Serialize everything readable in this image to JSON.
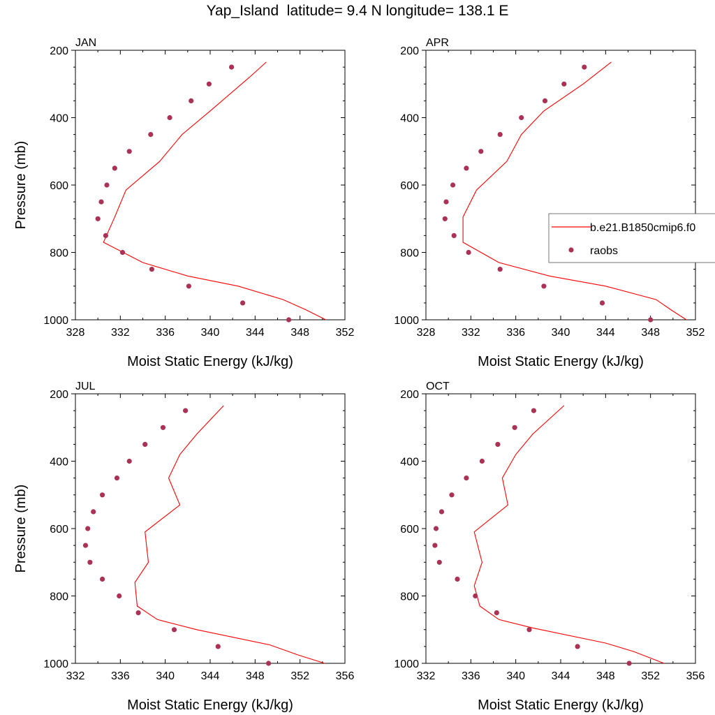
{
  "figure": {
    "title": "Yap_Island  latitude= 9.4 N longitude= 138.1 E",
    "xlabel": "Moist Static Energy (kJ/kg)",
    "ylabel": "Pressure (mb)",
    "model_color": "#ff0000",
    "obs_color": "#aa3355"
  },
  "legend": {
    "model_label": "b.e21.B1850cmip6.f0",
    "obs_label": "raobs",
    "placement": "right of APR panel"
  },
  "chart_data": [
    {
      "type": "line",
      "title": "JAN",
      "xlabel": "Moist Static Energy (kJ/kg)",
      "ylabel": "Pressure (mb)",
      "xlim": [
        328,
        352
      ],
      "ylim": [
        200,
        1000
      ],
      "y_inverted": true,
      "xticks": [
        328,
        332,
        336,
        340,
        344,
        348,
        352
      ],
      "yticks": [
        200,
        400,
        600,
        800,
        1000
      ],
      "series": [
        {
          "name": "b.e21.B1850cmip6.f0",
          "style": "line",
          "x": [
            345.0,
            343.5,
            340.0,
            337.5,
            335.5,
            332.5,
            331.5,
            330.5,
            334.0,
            338.0,
            342.5,
            346.5,
            348.5,
            350.3
          ],
          "y": [
            235,
            280,
            380,
            450,
            530,
            615,
            695,
            770,
            830,
            870,
            900,
            940,
            970,
            1000
          ]
        },
        {
          "name": "raobs",
          "style": "markers",
          "x": [
            341.9,
            339.9,
            338.3,
            336.4,
            334.7,
            332.8,
            331.5,
            330.8,
            330.3,
            330.0,
            330.7,
            332.2,
            334.8,
            338.1,
            342.9,
            347.0
          ],
          "y": [
            250,
            300,
            350,
            400,
            450,
            500,
            550,
            600,
            650,
            700,
            750,
            800,
            850,
            900,
            950,
            1000
          ]
        }
      ]
    },
    {
      "type": "line",
      "title": "APR",
      "xlabel": "Moist Static Energy (kJ/kg)",
      "ylabel": "",
      "xlim": [
        328,
        352
      ],
      "ylim": [
        200,
        1000
      ],
      "y_inverted": true,
      "xticks": [
        328,
        332,
        336,
        340,
        344,
        348,
        352
      ],
      "yticks": [
        200,
        400,
        600,
        800,
        1000
      ],
      "series": [
        {
          "name": "b.e21.B1850cmip6.f0",
          "style": "line",
          "x": [
            344.5,
            342.0,
            338.5,
            336.5,
            335.2,
            332.5,
            331.3,
            331.3,
            334.5,
            339.0,
            344.0,
            348.5,
            349.8,
            351.2
          ],
          "y": [
            235,
            300,
            380,
            450,
            530,
            615,
            695,
            770,
            830,
            870,
            900,
            940,
            970,
            1000
          ]
        },
        {
          "name": "raobs",
          "style": "markers",
          "x": [
            342.1,
            340.3,
            338.6,
            336.5,
            334.6,
            332.9,
            331.6,
            330.4,
            329.8,
            329.7,
            330.5,
            331.8,
            334.6,
            338.5,
            343.7,
            348.0
          ],
          "y": [
            250,
            300,
            350,
            400,
            450,
            500,
            550,
            600,
            650,
            700,
            750,
            800,
            850,
            900,
            950,
            1000
          ]
        }
      ]
    },
    {
      "type": "line",
      "title": "JUL",
      "xlabel": "Moist Static Energy (kJ/kg)",
      "ylabel": "Pressure (mb)",
      "xlim": [
        332,
        356
      ],
      "ylim": [
        200,
        1000
      ],
      "y_inverted": true,
      "xticks": [
        332,
        336,
        340,
        344,
        348,
        352,
        356
      ],
      "yticks": [
        200,
        400,
        600,
        800,
        1000
      ],
      "series": [
        {
          "name": "b.e21.B1850cmip6.f0",
          "style": "line",
          "x": [
            345.2,
            342.8,
            341.3,
            340.3,
            341.3,
            338.2,
            338.5,
            337.3,
            337.5,
            339.3,
            342.8,
            349.3,
            351.8,
            354.2
          ],
          "y": [
            235,
            320,
            380,
            450,
            530,
            610,
            700,
            760,
            830,
            870,
            900,
            945,
            975,
            1000
          ]
        },
        {
          "name": "raobs",
          "style": "markers",
          "x": [
            341.8,
            339.8,
            338.2,
            336.8,
            335.7,
            334.4,
            333.6,
            333.1,
            332.9,
            333.3,
            334.4,
            335.9,
            337.6,
            340.8,
            344.7,
            349.2
          ],
          "y": [
            250,
            300,
            350,
            400,
            450,
            500,
            550,
            600,
            650,
            700,
            750,
            800,
            850,
            900,
            950,
            1000
          ]
        }
      ]
    },
    {
      "type": "line",
      "title": "OCT",
      "xlabel": "Moist Static Energy (kJ/kg)",
      "ylabel": "",
      "xlim": [
        332,
        356
      ],
      "ylim": [
        200,
        1000
      ],
      "y_inverted": true,
      "xticks": [
        332,
        336,
        340,
        344,
        348,
        352,
        356
      ],
      "yticks": [
        200,
        400,
        600,
        800,
        1000
      ],
      "series": [
        {
          "name": "b.e21.B1850cmip6.f0",
          "style": "line",
          "x": [
            344.3,
            341.5,
            340.0,
            338.8,
            339.3,
            336.3,
            337.0,
            336.3,
            336.8,
            338.5,
            341.5,
            348.0,
            350.5,
            353.2
          ],
          "y": [
            235,
            320,
            380,
            450,
            530,
            610,
            700,
            770,
            830,
            870,
            895,
            940,
            965,
            1000
          ]
        },
        {
          "name": "raobs",
          "style": "markers",
          "x": [
            341.6,
            339.9,
            338.4,
            337.0,
            335.6,
            334.3,
            333.4,
            332.9,
            332.8,
            333.2,
            334.8,
            336.4,
            338.3,
            341.2,
            345.5,
            350.1
          ],
          "y": [
            250,
            300,
            350,
            400,
            450,
            500,
            550,
            600,
            650,
            700,
            750,
            800,
            850,
            900,
            950,
            1000
          ]
        }
      ]
    }
  ]
}
